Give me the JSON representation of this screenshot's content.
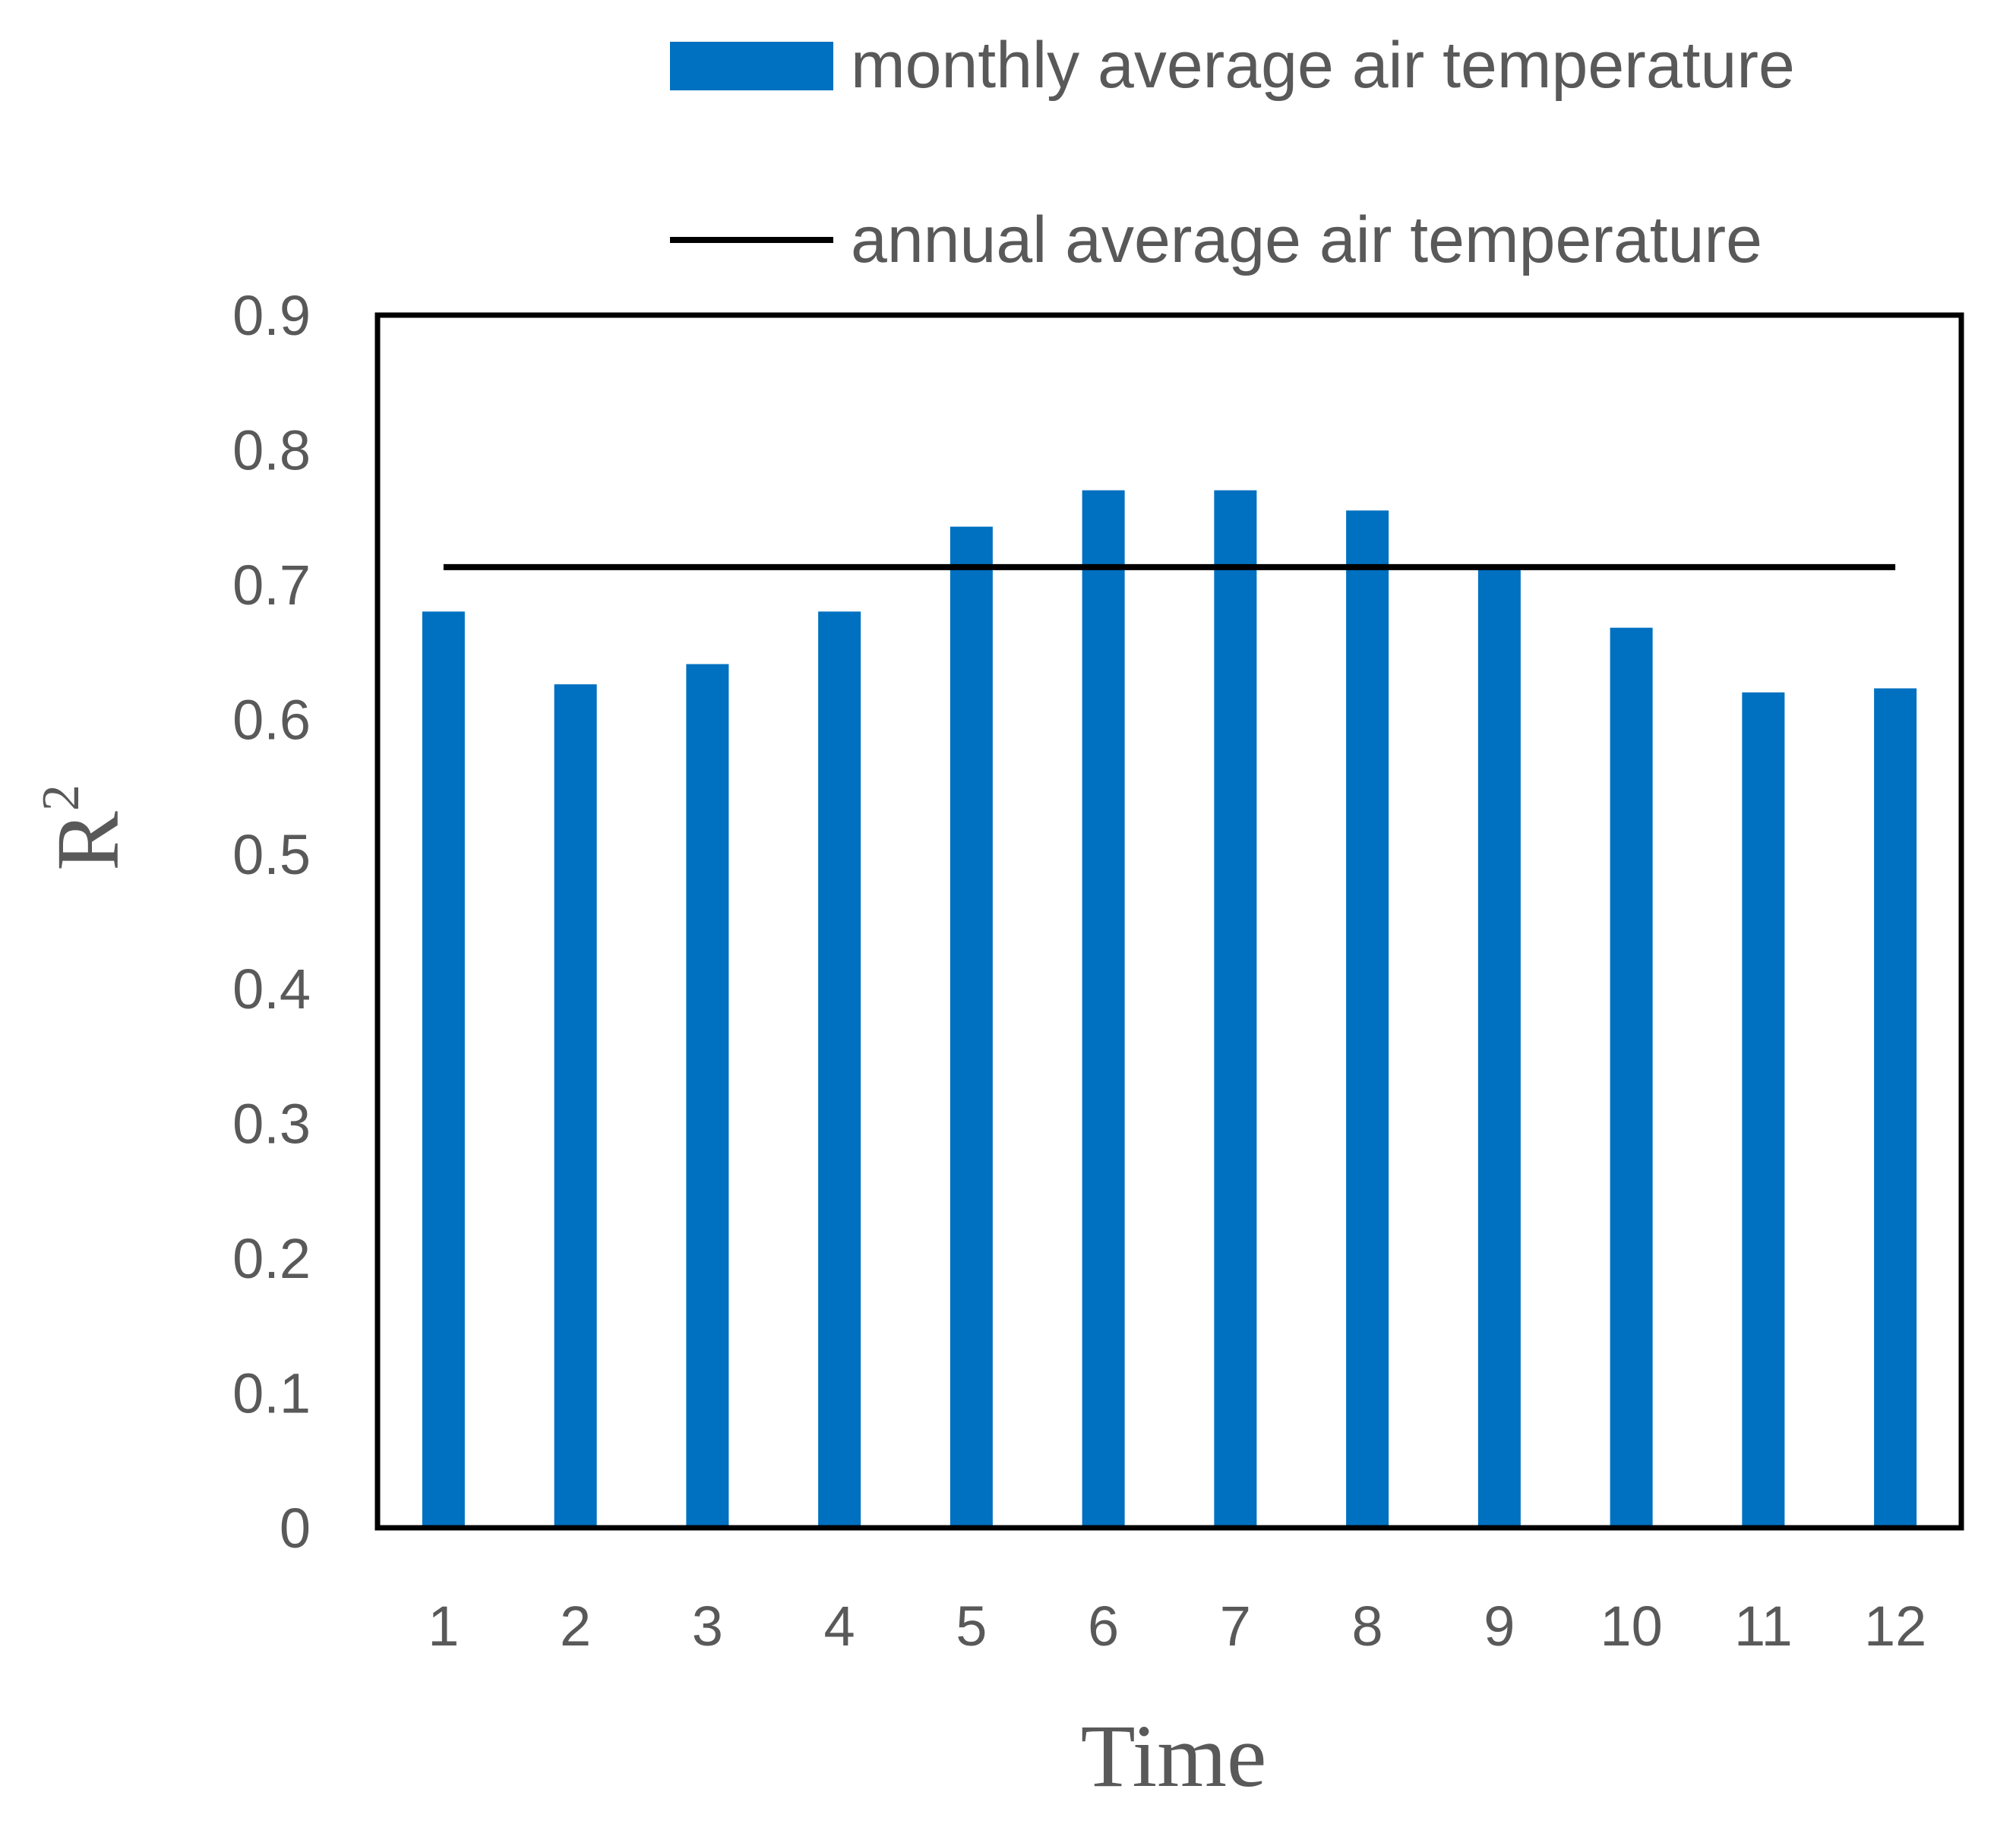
{
  "chart_data": {
    "type": "bar",
    "title": "",
    "xlabel": "Time",
    "ylabel_base": "R",
    "ylabel_sup": "2",
    "categories": [
      "1",
      "2",
      "3",
      "4",
      "5",
      "6",
      "7",
      "8",
      "9",
      "10",
      "11",
      "12"
    ],
    "series": [
      {
        "name": "monthly average air temperature",
        "type": "bar",
        "color": "#0070C0",
        "values": [
          0.68,
          0.626,
          0.641,
          0.68,
          0.743,
          0.77,
          0.77,
          0.755,
          0.713,
          0.668,
          0.62,
          0.623
        ]
      },
      {
        "name": "annual average air temperature",
        "type": "line",
        "color": "#000000",
        "value": 0.713
      }
    ],
    "ylim": [
      0,
      0.9
    ],
    "yticks": [
      "0",
      "0.1",
      "0.2",
      "0.3",
      "0.4",
      "0.5",
      "0.6",
      "0.7",
      "0.8",
      "0.9"
    ],
    "grid": false,
    "legend_position": "top-right"
  }
}
